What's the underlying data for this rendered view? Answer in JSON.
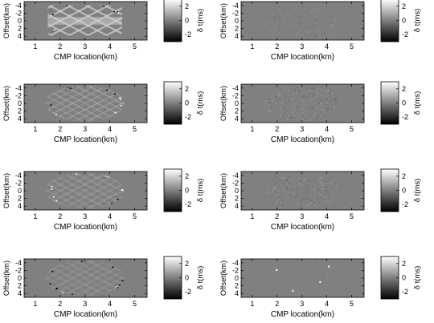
{
  "chart_data": [
    {
      "type": "heatmap",
      "row": 0,
      "col": 0,
      "pattern": "full",
      "amp": 2.4,
      "xlabel": "CMP location(km)",
      "ylabel": "Offset(km)",
      "xticks": [
        1,
        2,
        3,
        4,
        5
      ],
      "yticks": [
        -4,
        -2,
        0,
        2,
        4
      ],
      "xlim": [
        0.55,
        5.5
      ],
      "ylim": [
        -5,
        5
      ],
      "colorbar_label": "δ t(ms)",
      "colorbar_ticks": [
        2,
        0,
        -2
      ],
      "clim": [
        -3,
        3
      ]
    },
    {
      "type": "heatmap",
      "row": 0,
      "col": 1,
      "pattern": "residual",
      "amp": 0.25,
      "xlabel": "CMP location(km)",
      "ylabel": "Offset(km)",
      "xticks": [
        1,
        2,
        3,
        4,
        5
      ],
      "yticks": [
        -4,
        -2,
        0,
        2,
        4
      ],
      "xlim": [
        0.55,
        5.5
      ],
      "ylim": [
        -5,
        5
      ],
      "colorbar_label": "δ t(ms)",
      "colorbar_ticks": [
        2,
        0,
        -2
      ],
      "clim": [
        -3,
        3
      ]
    },
    {
      "type": "heatmap",
      "row": 1,
      "col": 0,
      "pattern": "mesh",
      "amp": 1.5,
      "xlabel": "CMP location(km)",
      "ylabel": "Offset(km)",
      "xticks": [
        1,
        2,
        3,
        4,
        5
      ],
      "yticks": [
        -4,
        -2,
        0,
        2,
        4
      ],
      "xlim": [
        0.55,
        5.5
      ],
      "ylim": [
        -5,
        5
      ],
      "colorbar_label": "δ t(ms)",
      "colorbar_ticks": [
        2,
        0,
        -2
      ],
      "clim": [
        -3,
        3
      ]
    },
    {
      "type": "heatmap",
      "row": 1,
      "col": 1,
      "pattern": "residual",
      "amp": 0.4,
      "xlabel": "CMP location(km)",
      "ylabel": "Offset(km)",
      "xticks": [
        1,
        2,
        3,
        4,
        5
      ],
      "yticks": [
        -4,
        -2,
        0,
        2,
        4
      ],
      "xlim": [
        0.55,
        5.5
      ],
      "ylim": [
        -5,
        5
      ],
      "colorbar_label": "δ t(ms)",
      "colorbar_ticks": [
        2,
        0,
        -2
      ],
      "clim": [
        -3,
        3
      ]
    },
    {
      "type": "heatmap",
      "row": 2,
      "col": 0,
      "pattern": "mesh",
      "amp": 1.2,
      "xlabel": "CMP location(km)",
      "ylabel": "Offset(km)",
      "xticks": [
        1,
        2,
        3,
        4,
        5
      ],
      "yticks": [
        -4,
        -2,
        0,
        2,
        4
      ],
      "xlim": [
        0.55,
        5.5
      ],
      "ylim": [
        -5,
        5
      ],
      "colorbar_label": "δ t(ms)",
      "colorbar_ticks": [
        2,
        0,
        -2
      ],
      "clim": [
        -3,
        3
      ]
    },
    {
      "type": "heatmap",
      "row": 2,
      "col": 1,
      "pattern": "residual",
      "amp": 0.35,
      "xlabel": "CMP location(km)",
      "ylabel": "Offset(km)",
      "xticks": [
        1,
        2,
        3,
        4,
        5
      ],
      "yticks": [
        -4,
        -2,
        0,
        2,
        4
      ],
      "xlim": [
        0.55,
        5.5
      ],
      "ylim": [
        -5,
        5
      ],
      "colorbar_label": "δ t(ms)",
      "colorbar_ticks": [
        2,
        0,
        -2
      ],
      "clim": [
        -3,
        3
      ]
    },
    {
      "type": "heatmap",
      "row": 3,
      "col": 0,
      "pattern": "mesh",
      "amp": 0.9,
      "xlabel": "CMP location(km)",
      "ylabel": "Offset(km)",
      "xticks": [
        1,
        2,
        3,
        4,
        5
      ],
      "yticks": [
        -4,
        -2,
        0,
        2,
        4
      ],
      "xlim": [
        0.55,
        5.5
      ],
      "ylim": [
        -5,
        5
      ],
      "colorbar_label": "δ t(ms)",
      "colorbar_ticks": [
        2,
        0,
        -2
      ],
      "clim": [
        -3,
        3
      ]
    },
    {
      "type": "heatmap",
      "row": 3,
      "col": 1,
      "pattern": "sparse",
      "amp": 0.2,
      "xlabel": "CMP location(km)",
      "ylabel": "Offset(km)",
      "xticks": [
        1,
        2,
        3,
        4,
        5
      ],
      "yticks": [
        -4,
        -2,
        0,
        2,
        4
      ],
      "xlim": [
        0.55,
        5.5
      ],
      "ylim": [
        -5,
        5
      ],
      "colorbar_label": "δ t(ms)",
      "colorbar_ticks": [
        2,
        0,
        -2
      ],
      "clim": [
        -3,
        3
      ]
    }
  ]
}
